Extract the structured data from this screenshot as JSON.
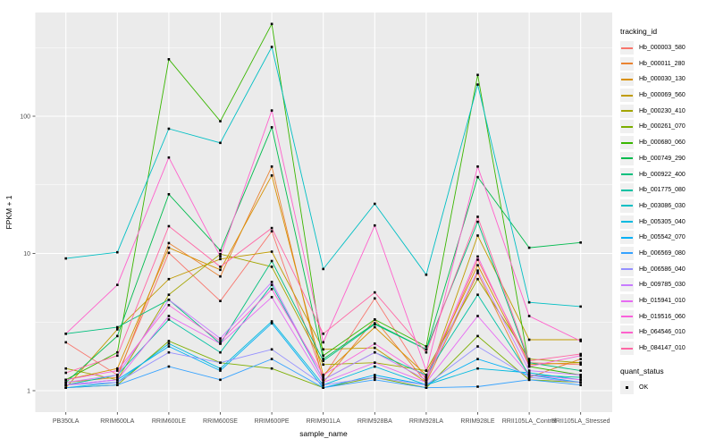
{
  "chart_data": {
    "type": "line",
    "xlabel": "sample_name",
    "ylabel": "FPKM + 1",
    "yscale": "log10",
    "ylim": [
      0.73,
      650
    ],
    "yticks": [
      1,
      10,
      100
    ],
    "minor_gridlines": [
      3.162,
      31.62,
      316.2
    ],
    "grid": true,
    "panel_bg": "#EBEBEB",
    "grid_color": "#FFFFFF",
    "tick_color": "#333333",
    "tick_text_color": "#4D4D4D",
    "point_marker": "black-square",
    "legend_position": "right",
    "legend_title": "tracking_id",
    "shape_legend": {
      "title": "quant_status",
      "items": [
        {
          "label": "OK",
          "marker": "black-square"
        }
      ]
    },
    "categories": [
      "PB350LA",
      "RRIM600LA",
      "RRIM600LE",
      "RRIM600SE",
      "RRIM600PE",
      "RRIM901LA",
      "RRIM928BA",
      "RRIM928LA",
      "RRIM928LE",
      "RRII105LA_Control",
      "RRII105LA_Stressed"
    ],
    "series": [
      {
        "name": "Hb_000003_580",
        "color": "#F8766D",
        "values": [
          2.25,
          1.3,
          10.1,
          4.5,
          14.5,
          1.25,
          4.7,
          1.2,
          9.0,
          1.6,
          1.55
        ]
      },
      {
        "name": "Hb_000011_280",
        "color": "#EA8331",
        "values": [
          1.15,
          1.25,
          11.9,
          6.8,
          43,
          1.15,
          3.3,
          1.15,
          7.2,
          1.25,
          1.7
        ]
      },
      {
        "name": "Hb_000030_130",
        "color": "#D89000",
        "values": [
          1.2,
          1.45,
          11.0,
          7.6,
          37,
          1.3,
          2.9,
          1.3,
          8.2,
          1.55,
          1.6
        ]
      },
      {
        "name": "Hb_000069_560",
        "color": "#C09B00",
        "values": [
          1.05,
          2.8,
          6.5,
          9.1,
          10.3,
          2.0,
          2.05,
          1.15,
          13.5,
          2.35,
          2.35
        ]
      },
      {
        "name": "Hb_000230_410",
        "color": "#A3A500",
        "values": [
          1.45,
          1.2,
          5.0,
          9.9,
          8.0,
          1.55,
          1.6,
          1.4,
          6.5,
          1.7,
          1.6
        ]
      },
      {
        "name": "Hb_000261_070",
        "color": "#7CAE00",
        "values": [
          1.05,
          1.1,
          2.3,
          1.6,
          1.45,
          1.05,
          1.25,
          1.05,
          2.5,
          1.2,
          1.15
        ]
      },
      {
        "name": "Hb_000680_060",
        "color": "#39B600",
        "values": [
          1.2,
          1.9,
          260,
          92,
          470,
          1.8,
          3.3,
          2.1,
          200,
          1.5,
          1.3
        ]
      },
      {
        "name": "Hb_000749_290",
        "color": "#00BB4E",
        "values": [
          1.15,
          2.5,
          27,
          10.5,
          83,
          1.7,
          3.1,
          2.0,
          36,
          11.0,
          12.0
        ]
      },
      {
        "name": "Hb_000922_400",
        "color": "#00BF7D",
        "values": [
          2.6,
          2.9,
          4.6,
          2.2,
          8.8,
          1.65,
          3.05,
          2.0,
          17,
          1.6,
          1.4
        ]
      },
      {
        "name": "Hb_001775_080",
        "color": "#00C1A3",
        "values": [
          1.1,
          1.3,
          3.3,
          1.9,
          5.9,
          1.2,
          1.9,
          1.3,
          5.0,
          1.3,
          1.25
        ]
      },
      {
        "name": "Hb_003086_030",
        "color": "#00BFC4",
        "values": [
          9.2,
          10.2,
          81,
          64,
          320,
          7.7,
          23,
          7.0,
          170,
          4.4,
          4.1
        ]
      },
      {
        "name": "Hb_005305_040",
        "color": "#00BAE0",
        "values": [
          1.05,
          1.15,
          2.2,
          1.45,
          3.2,
          1.1,
          1.5,
          1.1,
          1.45,
          1.35,
          1.2
        ]
      },
      {
        "name": "Hb_005542_070",
        "color": "#00B0F6",
        "values": [
          1.1,
          1.2,
          2.1,
          1.4,
          3.1,
          1.05,
          1.3,
          1.1,
          1.7,
          1.3,
          1.15
        ]
      },
      {
        "name": "Hb_006569_080",
        "color": "#35A2FF",
        "values": [
          1.05,
          1.1,
          1.5,
          1.2,
          1.7,
          1.05,
          1.2,
          1.05,
          1.07,
          1.2,
          1.1
        ]
      },
      {
        "name": "Hb_006586_040",
        "color": "#9590FF",
        "values": [
          1.1,
          1.15,
          1.9,
          1.6,
          2.0,
          1.1,
          1.25,
          1.1,
          2.1,
          1.25,
          1.15
        ]
      },
      {
        "name": "Hb_009785_030",
        "color": "#C77CFF",
        "values": [
          1.15,
          1.3,
          4.6,
          2.4,
          6.2,
          1.2,
          1.9,
          1.2,
          7.5,
          1.4,
          1.3
        ]
      },
      {
        "name": "Hb_015941_010",
        "color": "#E76BF3",
        "values": [
          1.1,
          1.2,
          3.5,
          2.2,
          4.8,
          1.15,
          1.6,
          1.15,
          3.5,
          1.3,
          1.2
        ]
      },
      {
        "name": "Hb_019516_060",
        "color": "#FA62DB",
        "values": [
          1.2,
          1.4,
          4.2,
          2.3,
          5.5,
          1.3,
          2.2,
          1.25,
          9.5,
          1.5,
          1.8
        ]
      },
      {
        "name": "Hb_064546_010",
        "color": "#FF61CC",
        "values": [
          2.6,
          5.9,
          50,
          9.5,
          110,
          2.25,
          16,
          1.4,
          43,
          3.5,
          2.3
        ]
      },
      {
        "name": "Hb_084147_010",
        "color": "#FF67A4",
        "values": [
          1.35,
          1.8,
          15.8,
          8.0,
          15.3,
          2.6,
          5.2,
          1.9,
          18.5,
          1.65,
          1.85
        ]
      }
    ]
  }
}
